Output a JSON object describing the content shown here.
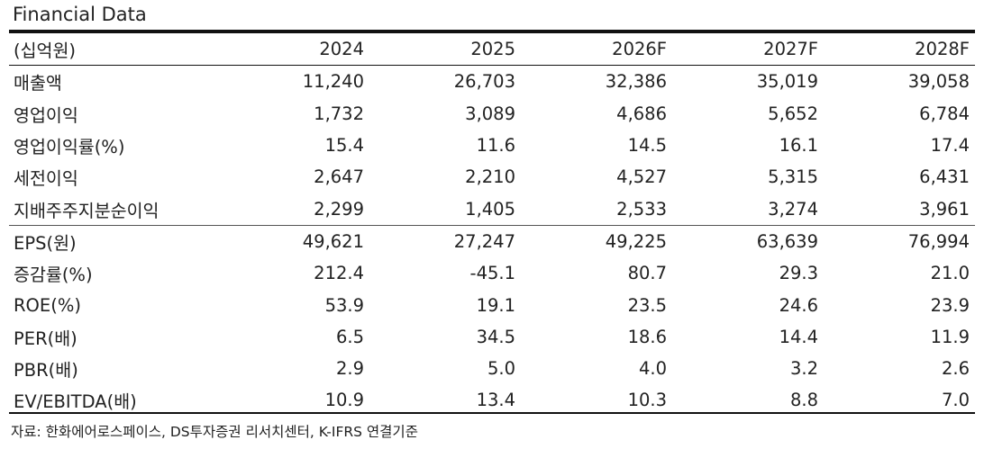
{
  "title": "Financial Data",
  "header": [
    "(십억원)",
    "2024",
    "2025",
    "2026F",
    "2027F",
    "2028F"
  ],
  "rows": [
    {
      "label": "매출액",
      "values": [
        "11,240",
        "26,703",
        "32,386",
        "35,019",
        "39,058"
      ]
    },
    {
      "label": "영업이익",
      "values": [
        "1,732",
        "3,089",
        "4,686",
        "5,652",
        "6,784"
      ]
    },
    {
      "label": "영업이익률(%)",
      "values": [
        "15.4",
        "11.6",
        "14.5",
        "16.1",
        "17.4"
      ]
    },
    {
      "label": "세전이익",
      "values": [
        "2,647",
        "2,210",
        "4,527",
        "5,315",
        "6,431"
      ]
    },
    {
      "label": "지배주주지분순이익",
      "values": [
        "2,299",
        "1,405",
        "2,533",
        "3,274",
        "3,961"
      ]
    },
    {
      "label": "EPS(원)",
      "values": [
        "49,621",
        "27,247",
        "49,225",
        "63,639",
        "76,994"
      ]
    },
    {
      "label": "증감률(%)",
      "values": [
        "212.4",
        "-45.1",
        "80.7",
        "29.3",
        "21.0"
      ]
    },
    {
      "label": "ROE(%)",
      "values": [
        "53.9",
        "19.1",
        "23.5",
        "24.6",
        "23.9"
      ]
    },
    {
      "label": "PER(배)",
      "values": [
        "6.5",
        "34.5",
        "18.6",
        "14.4",
        "11.9"
      ]
    },
    {
      "label": "PBR(배)",
      "values": [
        "2.9",
        "5.0",
        "4.0",
        "3.2",
        "2.6"
      ]
    },
    {
      "label": "EV/EBITDA(배)",
      "values": [
        "10.9",
        "13.4",
        "10.3",
        "8.8",
        "7.0"
      ]
    }
  ],
  "source": "자료: 한화에어로스페이스, DS투자증권 리서치센터, K-IFRS 연결기준"
}
